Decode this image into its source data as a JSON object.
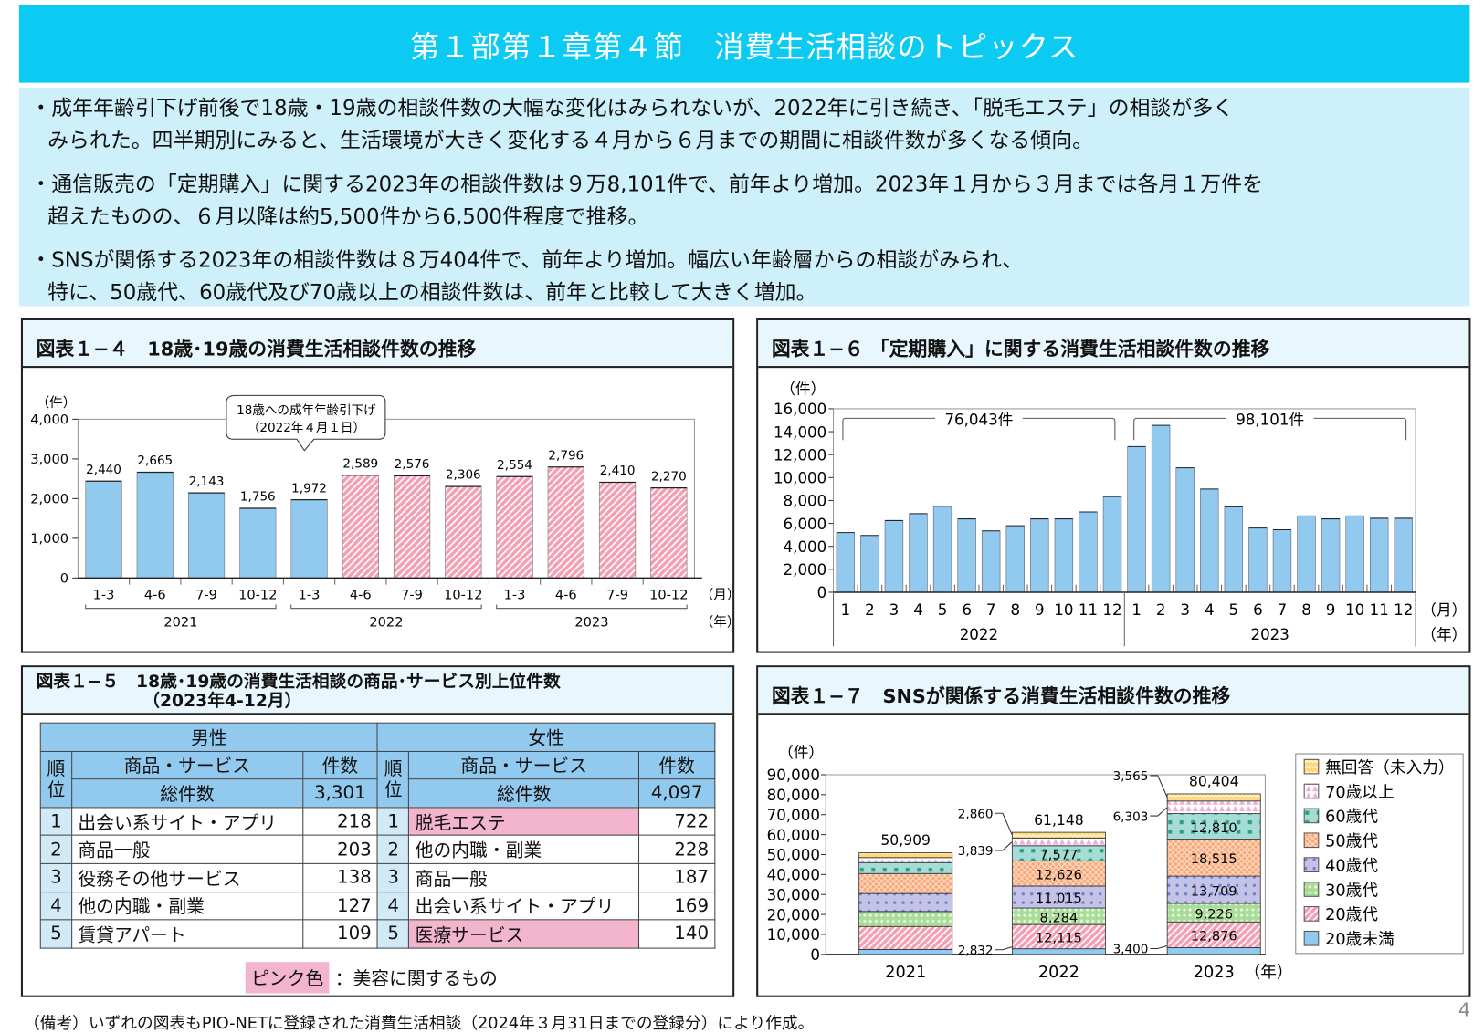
{
  "title": "第１部第１章第４節　消費生活相談のトピックス",
  "summary": [
    {
      "lines": [
        "・成年年齢引下げ前後で18歳・19歳の相談件数の大幅な変化はみられないが、2022年に引き続き、「脱毛エステ」の相談が多く",
        "みられた。四半期別にみると、生活環境が大きく変化する４月から６月までの期間に相談件数が多くなる傾向。"
      ]
    },
    {
      "lines": [
        "・通信販売の「定期購入」に関する2023年の相談件数は９万8,101件で、前年より増加。2023年１月から３月までは各月１万件を",
        "超えたものの、６月以降は約5,500件から6,500件程度で推移。"
      ]
    },
    {
      "lines": [
        "・SNSが関係する2023年の相談件数は８万404件で、前年より増加。幅広い年齢層からの相談がみられ、",
        "特に、50歳代、60歳代及び70歳以上の相談件数は、前年と比較して大きく増加。"
      ]
    }
  ],
  "fig14": {
    "title": "図表１−４　18歳･19歳の消費生活相談件数の推移"
  },
  "fig16": {
    "title": "図表１−６ 「定期購入」に関する消費生活相談件数の推移"
  },
  "fig15": {
    "title": "図表１−５　18歳･19歳の消費生活相談の商品･サービス別上位件数",
    "subtitle": "（2023年4-12月）",
    "table": {
      "male_label": "男性",
      "female_label": "女性",
      "rank_label": "順位",
      "item_label": "商品・サービス",
      "count_label": "件数",
      "total_label": "総件数",
      "male_total": "3,301",
      "female_total": "4,097",
      "male_rows": [
        {
          "rank": "1",
          "item": "出会い系サイト・アプリ",
          "count": "218",
          "beauty": false
        },
        {
          "rank": "2",
          "item": "商品一般",
          "count": "203",
          "beauty": false
        },
        {
          "rank": "3",
          "item": "役務その他サービス",
          "count": "138",
          "beauty": false
        },
        {
          "rank": "4",
          "item": "他の内職・副業",
          "count": "127",
          "beauty": false
        },
        {
          "rank": "5",
          "item": "賃貸アパート",
          "count": "109",
          "beauty": false
        }
      ],
      "female_rows": [
        {
          "rank": "1",
          "item": "脱毛エステ",
          "count": "722",
          "beauty": true
        },
        {
          "rank": "2",
          "item": "他の内職・副業",
          "count": "228",
          "beauty": false
        },
        {
          "rank": "3",
          "item": "商品一般",
          "count": "187",
          "beauty": false
        },
        {
          "rank": "4",
          "item": "出会い系サイト・アプリ",
          "count": "169",
          "beauty": false
        },
        {
          "rank": "5",
          "item": "医療サービス",
          "count": "140",
          "beauty": true
        }
      ],
      "highlight_color": "#f3b4cd",
      "legend_swatch": "ピンク色",
      "legend_text": "：美容に関するもの"
    }
  },
  "fig17": {
    "title": "図表１−７　SNSが関係する消費生活相談件数の推移"
  },
  "footer": "（備考）いずれの図表もPIO-NETに登録された消費生活相談（2024年３月31日までの登録分）により作成。",
  "page_number": "4",
  "chart_data": [
    {
      "id": "fig14",
      "type": "bar",
      "ylabel": "（件）",
      "xunit": "（月）",
      "yearunit": "（年）",
      "ylim": [
        0,
        4000
      ],
      "yticks": [
        0,
        1000,
        2000,
        3000,
        4000
      ],
      "tick_labels": [
        "0",
        "1,000",
        "2,000",
        "3,000",
        "4,000"
      ],
      "categories": [
        "1-3",
        "4-6",
        "7-9",
        "10-12",
        "1-3",
        "4-6",
        "7-9",
        "10-12",
        "1-3",
        "4-6",
        "7-9",
        "10-12"
      ],
      "years": [
        "2021",
        "2021",
        "2021",
        "2021",
        "2022",
        "2022",
        "2022",
        "2022",
        "2023",
        "2023",
        "2023",
        "2023"
      ],
      "values": [
        2440,
        2665,
        2143,
        1756,
        1972,
        2589,
        2576,
        2306,
        2554,
        2796,
        2410,
        2270
      ],
      "value_labels": [
        "2,440",
        "2,665",
        "2,143",
        "1,756",
        "1,972",
        "2,589",
        "2,576",
        "2,306",
        "2,554",
        "2,796",
        "2,410",
        "2,270"
      ],
      "bar_colors": [
        "#92c9ee",
        "#92c9ee",
        "#92c9ee",
        "#92c9ee",
        "#92c9ee",
        "#f4a0b4",
        "#f4a0b4",
        "#f4a0b4",
        "#f4a0b4",
        "#f4a0b4",
        "#f4a0b4",
        "#f4a0b4"
      ],
      "annotation": {
        "lines": [
          "18歳への成年年齢引下げ",
          "（2022年４月１日）"
        ]
      },
      "grid": false
    },
    {
      "id": "fig16",
      "type": "bar",
      "ylabel": "（件）",
      "xunit": "（月）",
      "yearunit": "（年）",
      "ylim": [
        0,
        16000
      ],
      "yticks": [
        0,
        2000,
        4000,
        6000,
        8000,
        10000,
        12000,
        14000,
        16000
      ],
      "tick_labels": [
        "0",
        "2,000",
        "4,000",
        "6,000",
        "8,000",
        "10,000",
        "12,000",
        "14,000",
        "16,000"
      ],
      "categories": [
        "1",
        "2",
        "3",
        "4",
        "5",
        "6",
        "7",
        "8",
        "9",
        "10",
        "11",
        "12",
        "1",
        "2",
        "3",
        "4",
        "5",
        "6",
        "7",
        "8",
        "9",
        "10",
        "11",
        "12"
      ],
      "years": [
        "2022",
        "2023"
      ],
      "values": [
        5200,
        4950,
        6250,
        6850,
        7500,
        6400,
        5350,
        5800,
        6400,
        6400,
        7000,
        8350,
        12700,
        14550,
        10850,
        9000,
        7450,
        5600,
        5450,
        6650,
        6400,
        6650,
        6450,
        6450
      ],
      "bar_color": "#92c9ee",
      "totals": [
        "76,043件",
        "98,101件"
      ],
      "grid": false
    },
    {
      "id": "fig17",
      "type": "bar",
      "stacked": true,
      "ylabel": "（件）",
      "xunit": "（年）",
      "ylim": [
        0,
        90000
      ],
      "yticks": [
        0,
        10000,
        20000,
        30000,
        40000,
        50000,
        60000,
        70000,
        80000,
        90000
      ],
      "tick_labels": [
        "0",
        "10,000",
        "20,000",
        "30,000",
        "40,000",
        "50,000",
        "60,000",
        "70,000",
        "80,000",
        "90,000"
      ],
      "categories": [
        "2021",
        "2022",
        "2023"
      ],
      "totals": [
        "50,909",
        "61,148",
        "80,404"
      ],
      "legend_position": "right",
      "series": [
        {
          "name": "20歳未満",
          "color": "#92c9ee",
          "pattern": "solid",
          "values": [
            2500,
            2832,
            3400
          ],
          "labels": [
            "",
            "2,832",
            "3,400"
          ]
        },
        {
          "name": "20歳代",
          "color": "#f4a0b4",
          "pattern": "diagonal-hatch",
          "values": [
            11500,
            12115,
            12876
          ],
          "labels": [
            "",
            "12,115",
            "12,876"
          ]
        },
        {
          "name": "30歳代",
          "color": "#a8dc98",
          "pattern": "checks",
          "values": [
            7500,
            8284,
            9226
          ],
          "labels": [
            "",
            "8,284",
            "9,226"
          ]
        },
        {
          "name": "40歳代",
          "color": "#c4c2e6",
          "pattern": "dots",
          "values": [
            9000,
            11015,
            13709
          ],
          "labels": [
            "",
            "11,015",
            "13,709"
          ]
        },
        {
          "name": "50歳代",
          "color": "#f8a878",
          "pattern": "crosshatch",
          "values": [
            10000,
            12626,
            18515
          ],
          "labels": [
            "",
            "12,626",
            "18,515"
          ]
        },
        {
          "name": "60歳代",
          "color": "#a6dcd6",
          "pattern": "squares",
          "values": [
            5500,
            7577,
            12810
          ],
          "labels": [
            "",
            "7,577",
            "12,810"
          ]
        },
        {
          "name": "70歳以上",
          "color": "#f6cce6",
          "pattern": "triangles",
          "values": [
            2500,
            3839,
            6303
          ],
          "labels": [
            "",
            "3,839",
            "6,303"
          ]
        },
        {
          "name": "無回答（未入力）",
          "color": "#ffd978",
          "pattern": "zigzag",
          "values": [
            2409,
            2860,
            3565
          ],
          "labels": [
            "",
            "2,860",
            "3,565"
          ]
        }
      ],
      "grid": false
    }
  ]
}
